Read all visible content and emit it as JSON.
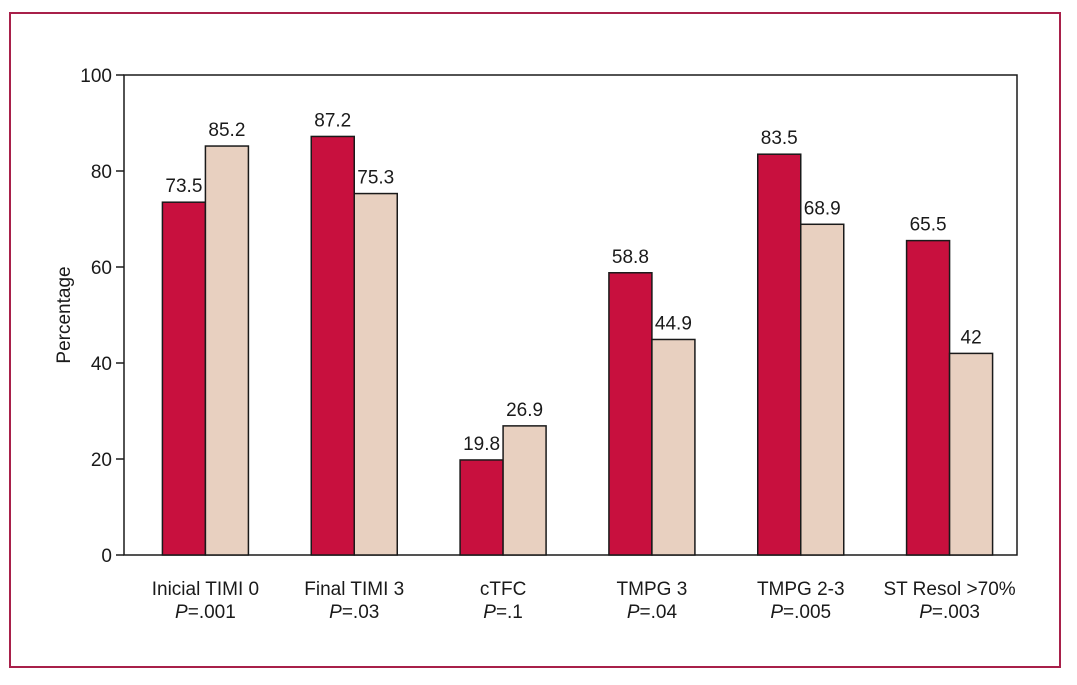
{
  "chart_data": {
    "type": "bar",
    "title": "",
    "xlabel": "",
    "ylabel": "Percentage",
    "ylim": [
      0,
      100
    ],
    "yticks": [
      "0",
      "20",
      "40",
      "60",
      "80",
      "100"
    ],
    "grid": false,
    "categories": [
      "Inicial TIMI 0",
      "Final TIMI 3",
      "cTFC",
      "TMPG 3",
      "TMPG 2-3",
      "ST Resol >70%"
    ],
    "p_values": [
      "=.001",
      "=.03",
      "=.1",
      "=.04",
      "=.005",
      "=.003"
    ],
    "p_prefix": "P",
    "series": [
      {
        "values": [
          73.5,
          87.2,
          19.8,
          58.8,
          83.5,
          65.5
        ],
        "labels": [
          "73.5",
          "87.2",
          "19.8",
          "58.8",
          "83.5",
          "65.5"
        ],
        "color": "#c8103e"
      },
      {
        "values": [
          85.2,
          75.3,
          26.9,
          44.9,
          68.9,
          42
        ],
        "labels": [
          "85.2",
          "75.3",
          "26.9",
          "44.9",
          "68.9",
          "42"
        ],
        "color": "#e8d0c0"
      }
    ],
    "frame_color": "#a8204a"
  }
}
